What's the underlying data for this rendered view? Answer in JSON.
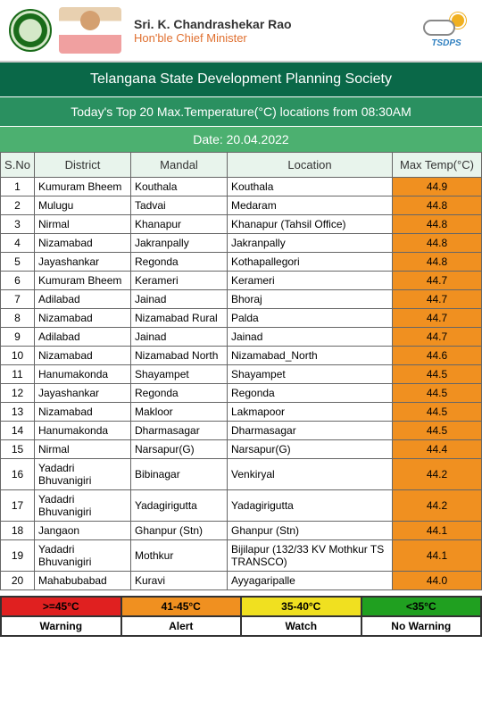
{
  "header": {
    "cm_name": "Sri. K. Chandrashekar Rao",
    "cm_title": "Hon'ble Chief Minister",
    "tsdps": "TSDPS"
  },
  "banner": {
    "org": "Telangana State Development Planning Society",
    "title": "Today's Top 20 Max.Temperature(°C) locations from 08:30AM",
    "date": "Date: 20.04.2022"
  },
  "columns": [
    "S.No",
    "District",
    "Mandal",
    "Location",
    "Max Temp(°C)"
  ],
  "temp_colors": {
    "warning": "#e02020",
    "alert": "#f09020",
    "watch": "#f0e020",
    "none": "#20a020"
  },
  "rows": [
    {
      "sno": 1,
      "district": "Kumuram Bheem",
      "mandal": "Kouthala",
      "location": "Kouthala",
      "temp": 44.9,
      "color": "#f09020"
    },
    {
      "sno": 2,
      "district": "Mulugu",
      "mandal": "Tadvai",
      "location": "Medaram",
      "temp": 44.8,
      "color": "#f09020"
    },
    {
      "sno": 3,
      "district": "Nirmal",
      "mandal": "Khanapur",
      "location": "Khanapur (Tahsil Office)",
      "temp": 44.8,
      "color": "#f09020"
    },
    {
      "sno": 4,
      "district": "Nizamabad",
      "mandal": "Jakranpally",
      "location": "Jakranpally",
      "temp": 44.8,
      "color": "#f09020"
    },
    {
      "sno": 5,
      "district": "Jayashankar",
      "mandal": "Regonda",
      "location": "Kothapallegori",
      "temp": 44.8,
      "color": "#f09020"
    },
    {
      "sno": 6,
      "district": "Kumuram Bheem",
      "mandal": "Kerameri",
      "location": "Kerameri",
      "temp": 44.7,
      "color": "#f09020"
    },
    {
      "sno": 7,
      "district": "Adilabad",
      "mandal": "Jainad",
      "location": "Bhoraj",
      "temp": 44.7,
      "color": "#f09020"
    },
    {
      "sno": 8,
      "district": "Nizamabad",
      "mandal": "Nizamabad Rural",
      "location": "Palda",
      "temp": 44.7,
      "color": "#f09020"
    },
    {
      "sno": 9,
      "district": "Adilabad",
      "mandal": "Jainad",
      "location": "Jainad",
      "temp": 44.7,
      "color": "#f09020"
    },
    {
      "sno": 10,
      "district": "Nizamabad",
      "mandal": "Nizamabad North",
      "location": "Nizamabad_North",
      "temp": 44.6,
      "color": "#f09020"
    },
    {
      "sno": 11,
      "district": "Hanumakonda",
      "mandal": "Shayampet",
      "location": "Shayampet",
      "temp": 44.5,
      "color": "#f09020"
    },
    {
      "sno": 12,
      "district": "Jayashankar",
      "mandal": "Regonda",
      "location": "Regonda",
      "temp": 44.5,
      "color": "#f09020"
    },
    {
      "sno": 13,
      "district": "Nizamabad",
      "mandal": "Makloor",
      "location": "Lakmapoor",
      "temp": 44.5,
      "color": "#f09020"
    },
    {
      "sno": 14,
      "district": "Hanumakonda",
      "mandal": "Dharmasagar",
      "location": "Dharmasagar",
      "temp": 44.5,
      "color": "#f09020"
    },
    {
      "sno": 15,
      "district": "Nirmal",
      "mandal": "Narsapur(G)",
      "location": "Narsapur(G)",
      "temp": 44.4,
      "color": "#f09020"
    },
    {
      "sno": 16,
      "district": "Yadadri Bhuvanigiri",
      "mandal": "Bibinagar",
      "location": "Venkiryal",
      "temp": 44.2,
      "color": "#f09020"
    },
    {
      "sno": 17,
      "district": "Yadadri Bhuvanigiri",
      "mandal": "Yadagirigutta",
      "location": "Yadagirigutta",
      "temp": 44.2,
      "color": "#f09020"
    },
    {
      "sno": 18,
      "district": "Jangaon",
      "mandal": "Ghanpur (Stn)",
      "location": "Ghanpur (Stn)",
      "temp": 44.1,
      "color": "#f09020"
    },
    {
      "sno": 19,
      "district": "Yadadri Bhuvanigiri",
      "mandal": "Mothkur",
      "location": "Bijilapur (132/33 KV Mothkur TS TRANSCO)",
      "temp": 44.1,
      "color": "#f09020"
    },
    {
      "sno": 20,
      "district": "Mahabubabad",
      "mandal": "Kuravi",
      "location": "Ayyagaripalle",
      "temp": 44.0,
      "color": "#f09020"
    }
  ],
  "legend": [
    {
      "range": ">=45°C",
      "label": "Warning",
      "color": "#e02020"
    },
    {
      "range": "41-45°C",
      "label": "Alert",
      "color": "#f09020"
    },
    {
      "range": "35-40°C",
      "label": "Watch",
      "color": "#f0e020"
    },
    {
      "range": "<35°C",
      "label": "No Warning",
      "color": "#20a020"
    }
  ]
}
